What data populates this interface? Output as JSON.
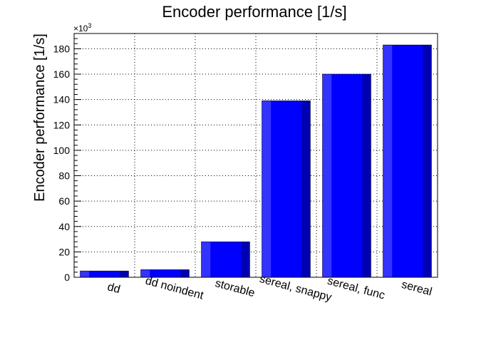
{
  "chart_data": {
    "type": "bar",
    "title": "Encoder performance [1/s]",
    "xlabel": "",
    "ylabel": "Encoder performance [1/s]",
    "y_multiplier_label": "×10",
    "y_multiplier_exponent": "3",
    "categories": [
      "dd",
      "dd noindent",
      "storable",
      "sereal, snappy",
      "sereal, func",
      "sereal"
    ],
    "values": [
      5,
      6,
      28,
      139,
      160,
      183
    ],
    "value_scale": 1000,
    "ylim": [
      0,
      192
    ],
    "yticks": [
      0,
      20,
      40,
      60,
      80,
      100,
      120,
      140,
      160,
      180
    ],
    "grid": true,
    "bar_color": "#0000ff",
    "bar_highlight": "#3333ff",
    "bar_shadow": "#0000b3"
  }
}
